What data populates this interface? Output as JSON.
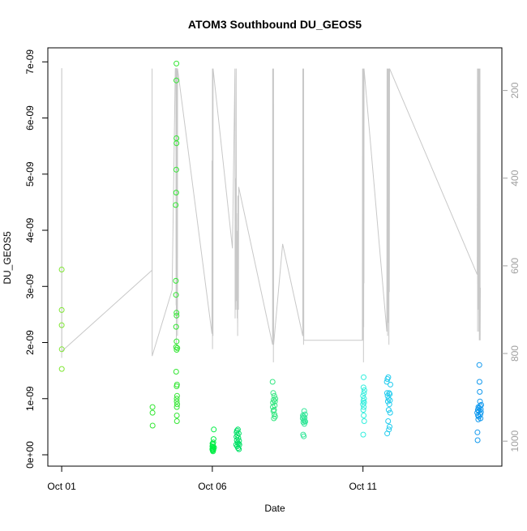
{
  "chart_data": {
    "type": "scatter",
    "title": "ATOM3 Southbound DU_GEOS5",
    "xlabel": "Date",
    "ylabel": "DU_GEOS5",
    "xlim": [
      "2016-09-30T12:58",
      "2016-10-15T14:38"
    ],
    "ylim": [
      0,
      7.25e-09
    ],
    "y2lim": [
      1020,
      160
    ],
    "x_ticks": [
      {
        "date": "2016-10-01",
        "label": "Oct 01"
      },
      {
        "date": "2016-10-06",
        "label": "Oct 06"
      },
      {
        "date": "2016-10-11",
        "label": "Oct 11"
      }
    ],
    "y_ticks": [
      {
        "value": 0,
        "label": "0e+00"
      },
      {
        "value": 1e-09,
        "label": "1e-09"
      },
      {
        "value": 2e-09,
        "label": "2e-09"
      },
      {
        "value": 3e-09,
        "label": "3e-09"
      },
      {
        "value": 4e-09,
        "label": "4e-09"
      },
      {
        "value": 5e-09,
        "label": "5e-09"
      },
      {
        "value": 6e-09,
        "label": "6e-09"
      },
      {
        "value": 7e-09,
        "label": "7e-09"
      }
    ],
    "y2_ticks": [
      {
        "value": 200,
        "label": "200"
      },
      {
        "value": 400,
        "label": "400"
      },
      {
        "value": 600,
        "label": "600"
      },
      {
        "value": 800,
        "label": "800"
      },
      {
        "value": 1000,
        "label": "1000"
      }
    ],
    "grid": false,
    "legend": "none",
    "colors": {
      "pressure_line": "#c8c8c8",
      "axis": "#000000",
      "right_axis": "#a0a0a0",
      "point_scale": [
        "#7fe633",
        "#33e633",
        "#00ee44",
        "#00e066",
        "#33e680",
        "#33e699",
        "#33eedd",
        "#22ccee",
        "#1199ee"
      ]
    },
    "points": {
      "groups": [
        {
          "ci": 0,
          "x": [
            "2016-10-01T00:00",
            "2016-10-01T00:01",
            "2016-10-01T00:02",
            "2016-10-01T00:03",
            "2016-10-01T00:04"
          ],
          "y": [
            3.3e-09,
            2.58e-09,
            2.31e-09,
            1.88e-09,
            1.53e-09
          ]
        },
        {
          "ci": 1,
          "x": [
            "2016-10-04T00:20",
            "2016-10-04T00:22",
            "2016-10-04T00:24"
          ],
          "y": [
            8.5e-10,
            7.5e-10,
            5.2e-10
          ]
        },
        {
          "ci": 1,
          "x": [
            "2016-10-04T18:50",
            "2016-10-04T18:58",
            "2016-10-04T19:05",
            "2016-10-04T19:08",
            "2016-10-04T19:10",
            "2016-10-04T19:12",
            "2016-10-04T19:14",
            "2016-10-04T19:17",
            "2016-10-04T19:20",
            "2016-10-04T19:22",
            "2016-10-04T19:24",
            "2016-10-04T19:26",
            "2016-10-04T19:28",
            "2016-10-04T19:30",
            "2016-10-04T19:32",
            "2016-10-04T19:34",
            "2016-10-04T19:36",
            "2016-10-04T19:38",
            "2016-10-04T19:40",
            "2016-10-04T19:42",
            "2016-10-04T19:45",
            "2016-10-04T19:48",
            "2016-10-04T19:50",
            "2016-10-04T19:55",
            "2016-10-04T20:00",
            "2016-10-04T20:05"
          ],
          "y": [
            4.45e-09,
            3.1e-09,
            2.85e-09,
            2.28e-09,
            1.92e-09,
            1.48e-09,
            4.67e-09,
            5.08e-09,
            6.67e-09,
            6.97e-09,
            5.64e-09,
            5.55e-09,
            2.53e-09,
            2.48e-09,
            2.02e-09,
            1.87e-09,
            1.22e-09,
            1e-09,
            9.5e-10,
            8.5e-10,
            7e-10,
            6e-10,
            1.25e-09,
            1.05e-09,
            9e-10,
            1.9e-09
          ]
        },
        {
          "ci": 2,
          "x": [
            "2016-10-06T00:00",
            "2016-10-06T00:05",
            "2016-10-06T00:10",
            "2016-10-06T00:15",
            "2016-10-06T00:20",
            "2016-10-06T00:25",
            "2016-10-06T00:30",
            "2016-10-06T00:35",
            "2016-10-06T00:40",
            "2016-10-06T00:45",
            "2016-10-06T00:50",
            "2016-10-06T01:00",
            "2016-10-06T01:10",
            "2016-10-06T01:20"
          ],
          "y": [
            1e-10,
            1.5e-10,
            2e-10,
            8e-11,
            1.2e-10,
            1.8e-10,
            6e-11,
            1e-10,
            1.4e-10,
            2.2e-10,
            9e-11,
            2.8e-10,
            4.5e-10,
            1.3e-10
          ]
        },
        {
          "ci": 3,
          "x": [
            "2016-10-06T19:00",
            "2016-10-06T19:10",
            "2016-10-06T19:20",
            "2016-10-06T19:30",
            "2016-10-06T19:40",
            "2016-10-06T19:50",
            "2016-10-06T20:00",
            "2016-10-06T20:10",
            "2016-10-06T20:20",
            "2016-10-06T20:30",
            "2016-10-06T20:40",
            "2016-10-06T20:50",
            "2016-10-06T21:00",
            "2016-10-06T21:10",
            "2016-10-06T21:20",
            "2016-10-06T21:30"
          ],
          "y": [
            1.8e-10,
            3.2e-10,
            4e-10,
            2.6e-10,
            4.3e-10,
            1.5e-10,
            3.5e-10,
            2.2e-10,
            4.5e-10,
            1.2e-10,
            3e-10,
            2e-10,
            3.8e-10,
            1e-10,
            2.5e-10,
            1.8e-10
          ]
        },
        {
          "ci": 4,
          "x": [
            "2016-10-08T00:00",
            "2016-10-08T00:10",
            "2016-10-08T00:20",
            "2016-10-08T00:30",
            "2016-10-08T00:40",
            "2016-10-08T00:50",
            "2016-10-08T01:00",
            "2016-10-08T01:10",
            "2016-10-08T01:20",
            "2016-10-08T01:30",
            "2016-10-08T01:40",
            "2016-10-08T01:50",
            "2016-10-08T02:00",
            "2016-10-08T02:10"
          ],
          "y": [
            1.3e-09,
            8.5e-10,
            9.3e-10,
            1.1e-09,
            7.8e-10,
            9.8e-10,
            6.5e-10,
            8e-10,
            1.05e-09,
            7.2e-10,
            8.8e-10,
            9.5e-10,
            6.8e-10,
            1e-09
          ]
        },
        {
          "ci": 5,
          "x": [
            "2016-10-09T00:00",
            "2016-10-09T00:10",
            "2016-10-09T00:20",
            "2016-10-09T00:30",
            "2016-10-09T00:40",
            "2016-10-09T00:50",
            "2016-10-09T01:00",
            "2016-10-09T01:10",
            "2016-10-09T01:20",
            "2016-10-09T01:30",
            "2016-10-09T01:40",
            "2016-10-09T01:50",
            "2016-10-09T02:00"
          ],
          "y": [
            6.5e-10,
            7e-10,
            3.6e-10,
            5.8e-10,
            6.8e-10,
            3.3e-10,
            6.2e-10,
            7.8e-10,
            5.5e-10,
            6.6e-10,
            6e-10,
            7.2e-10,
            5.9e-10
          ]
        },
        {
          "ci": 6,
          "x": [
            "2016-10-11T00:00",
            "2016-10-11T00:05",
            "2016-10-11T00:10",
            "2016-10-11T00:15",
            "2016-10-11T00:20",
            "2016-10-11T00:25",
            "2016-10-11T00:30",
            "2016-10-11T00:35",
            "2016-10-11T00:40",
            "2016-10-11T00:45",
            "2016-10-11T00:50",
            "2016-10-11T00:55",
            "2016-10-11T01:00",
            "2016-10-11T01:05"
          ],
          "y": [
            9e-10,
            1.05e-09,
            3.6e-10,
            8e-10,
            9.6e-10,
            1.2e-09,
            1.38e-09,
            7e-10,
            8.5e-10,
            1.1e-09,
            1e-09,
            9.3e-10,
            6e-10,
            1.15e-09
          ]
        },
        {
          "ci": 7,
          "x": [
            "2016-10-11T19:00",
            "2016-10-11T19:10",
            "2016-10-11T19:20",
            "2016-10-11T19:30",
            "2016-10-11T19:40",
            "2016-10-11T19:50",
            "2016-10-11T20:00",
            "2016-10-11T20:10",
            "2016-10-11T20:20",
            "2016-10-11T20:30",
            "2016-10-11T20:40",
            "2016-10-11T20:50",
            "2016-10-11T21:00",
            "2016-10-11T21:10",
            "2016-10-11T21:20",
            "2016-10-11T21:30",
            "2016-10-11T21:40",
            "2016-10-11T21:50"
          ],
          "y": [
            1.3e-09,
            1.1e-09,
            3.8e-10,
            1.35e-09,
            1.05e-09,
            9.5e-10,
            6e-10,
            1.38e-09,
            1e-09,
            8e-10,
            4.5e-10,
            1.1e-09,
            9e-10,
            5e-10,
            1.08e-09,
            9.7e-10,
            7.5e-10,
            1.25e-09
          ]
        },
        {
          "ci": 8,
          "x": [
            "2016-10-14T19:00",
            "2016-10-14T19:10",
            "2016-10-14T19:20",
            "2016-10-14T19:30",
            "2016-10-14T19:40",
            "2016-10-14T19:50",
            "2016-10-14T20:00",
            "2016-10-14T20:10",
            "2016-10-14T20:20",
            "2016-10-14T20:30",
            "2016-10-14T20:40",
            "2016-10-14T20:50",
            "2016-10-14T21:00",
            "2016-10-14T21:10",
            "2016-10-14T21:20",
            "2016-10-14T21:30",
            "2016-10-14T21:40",
            "2016-10-14T21:50",
            "2016-10-14T22:00",
            "2016-10-14T22:10"
          ],
          "y": [
            7.5e-10,
            4e-10,
            2.6e-10,
            8e-10,
            7e-10,
            6.3e-10,
            8.5e-10,
            7.8e-10,
            6.8e-10,
            8.3e-10,
            1.6e-09,
            1.3e-09,
            1.12e-09,
            9.5e-10,
            8.7e-10,
            7.2e-10,
            6.5e-10,
            8.1e-10,
            7.6e-10,
            8.9e-10
          ]
        }
      ]
    },
    "pressure_series": {
      "name": "",
      "x": [
        "2016-10-01T00:00",
        "2016-10-01T00:02",
        "2016-10-01T00:04",
        "2016-10-01T00:06",
        "2016-10-01T00:08",
        "2016-10-01T00:10",
        "2016-10-04T00:00",
        "2016-10-04T00:02",
        "2016-10-04T00:05",
        "2016-10-04T00:08",
        "2016-10-04T16:00",
        "2016-10-04T18:30",
        "2016-10-04T18:40",
        "2016-10-04T18:50",
        "2016-10-04T19:00",
        "2016-10-04T19:05",
        "2016-10-04T19:10",
        "2016-10-04T19:14",
        "2016-10-04T19:18",
        "2016-10-04T19:22",
        "2016-10-04T19:26",
        "2016-10-04T19:30",
        "2016-10-04T19:34",
        "2016-10-04T19:38",
        "2016-10-04T19:42",
        "2016-10-04T19:46",
        "2016-10-04T19:50",
        "2016-10-04T19:54",
        "2016-10-04T19:58",
        "2016-10-04T20:02",
        "2016-10-04T20:06",
        "2016-10-04T20:10",
        "2016-10-04T20:14",
        "2016-10-04T20:18",
        "2016-10-05T23:40",
        "2016-10-05T23:45",
        "2016-10-05T23:50",
        "2016-10-05T23:55",
        "2016-10-06T00:00",
        "2016-10-06T00:05",
        "2016-10-06T00:10",
        "2016-10-06T00:15",
        "2016-10-06T00:20",
        "2016-10-06T00:25",
        "2016-10-06T00:30",
        "2016-10-06T00:35",
        "2016-10-06T16:00",
        "2016-10-06T18:00",
        "2016-10-06T18:10",
        "2016-10-06T18:20",
        "2016-10-06T18:30",
        "2016-10-06T18:40",
        "2016-10-06T18:50",
        "2016-10-06T19:00",
        "2016-10-06T19:10",
        "2016-10-06T19:20",
        "2016-10-06T19:30",
        "2016-10-06T19:40",
        "2016-10-06T19:50",
        "2016-10-06T20:00",
        "2016-10-06T20:10",
        "2016-10-06T20:20",
        "2016-10-06T20:30",
        "2016-10-06T20:40",
        "2016-10-06T20:50",
        "2016-10-06T21:00",
        "2016-10-08T00:00",
        "2016-10-08T00:05",
        "2016-10-08T00:10",
        "2016-10-08T00:15",
        "2016-10-08T00:20",
        "2016-10-08T00:25",
        "2016-10-08T00:30",
        "2016-10-08T00:35",
        "2016-10-08T00:40",
        "2016-10-08T00:45",
        "2016-10-08T00:50",
        "2016-10-08T08:00",
        "2016-10-09T00:00",
        "2016-10-09T00:05",
        "2016-10-09T00:10",
        "2016-10-09T00:15",
        "2016-10-09T00:20",
        "2016-10-09T00:25",
        "2016-10-09T00:30",
        "2016-10-09T00:35",
        "2016-10-09T00:40",
        "2016-10-09T00:45",
        "2016-10-09T00:50",
        "2016-10-10T23:30",
        "2016-10-10T23:40",
        "2016-10-10T23:50",
        "2016-10-11T00:00",
        "2016-10-11T00:05",
        "2016-10-11T00:10",
        "2016-10-11T00:15",
        "2016-10-11T00:20",
        "2016-10-11T00:25",
        "2016-10-11T00:30",
        "2016-10-11T00:35",
        "2016-10-11T00:40",
        "2016-10-11T00:45",
        "2016-10-11T00:50",
        "2016-10-11T19:00",
        "2016-10-11T19:10",
        "2016-10-11T19:20",
        "2016-10-11T19:30",
        "2016-10-11T19:40",
        "2016-10-11T19:50",
        "2016-10-11T20:00",
        "2016-10-11T20:10",
        "2016-10-11T20:20",
        "2016-10-11T20:30",
        "2016-10-11T20:40",
        "2016-10-11T20:50",
        "2016-10-11T21:00",
        "2016-10-11T21:10",
        "2016-10-14T19:00",
        "2016-10-14T19:10",
        "2016-10-14T19:20",
        "2016-10-14T19:30",
        "2016-10-14T19:40",
        "2016-10-14T19:50",
        "2016-10-14T20:00",
        "2016-10-14T20:10",
        "2016-10-14T20:20",
        "2016-10-14T20:30",
        "2016-10-14T20:40",
        "2016-10-14T20:50",
        "2016-10-14T21:00",
        "2016-10-14T21:10",
        "2016-10-14T21:20",
        "2016-10-14T21:30"
      ],
      "y": [
        810,
        150,
        150,
        150,
        790,
        795,
        610,
        150,
        805,
        805,
        655,
        150,
        150,
        150,
        150,
        560,
        690,
        150,
        780,
        150,
        700,
        150,
        640,
        150,
        150,
        720,
        150,
        680,
        560,
        150,
        600,
        150,
        760,
        150,
        755,
        360,
        690,
        420,
        650,
        150,
        790,
        500,
        700,
        600,
        760,
        150,
        560,
        150,
        720,
        400,
        680,
        600,
        700,
        150,
        600,
        480,
        680,
        520,
        720,
        580,
        760,
        440,
        690,
        540,
        700,
        420,
        780,
        150,
        700,
        150,
        760,
        150,
        710,
        150,
        820,
        150,
        780,
        550,
        760,
        150,
        650,
        150,
        700,
        150,
        690,
        150,
        780,
        150,
        770,
        770,
        150,
        700,
        150,
        770,
        150,
        690,
        150,
        820,
        150,
        740,
        150,
        640,
        150,
        750,
        150,
        700,
        150,
        760,
        150,
        690,
        150,
        730,
        150,
        780,
        150,
        660,
        150,
        620,
        150,
        750,
        150,
        640,
        150,
        700,
        150,
        750,
        150,
        770,
        150,
        680,
        150,
        770,
        650
      ]
    }
  }
}
